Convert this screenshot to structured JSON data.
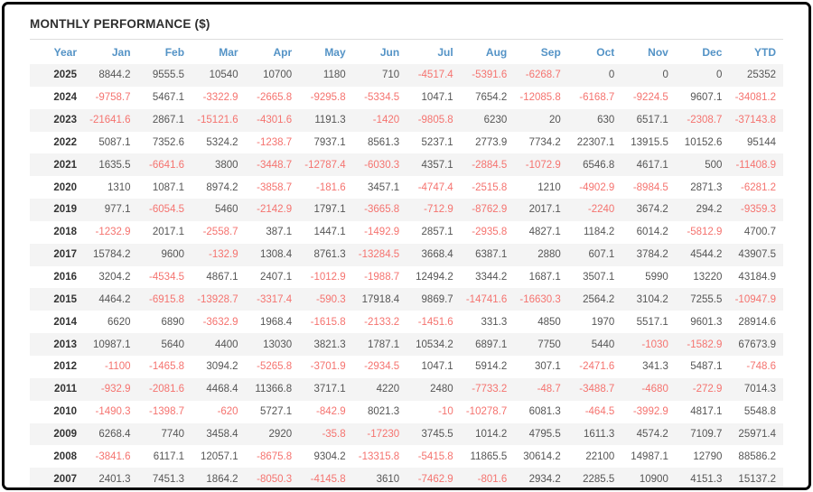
{
  "page": {
    "title": "MONTHLY PERFORMANCE ($)"
  },
  "colors": {
    "title": "#2e2e2e",
    "header_text": "#5493c6",
    "year_text": "#333333",
    "positive": "#555555",
    "negative": "#f5736f",
    "stripe": "#f4f4f4"
  },
  "chart_data": {
    "type": "table",
    "title": "MONTHLY PERFORMANCE ($)",
    "columns": [
      "Year",
      "Jan",
      "Feb",
      "Mar",
      "Apr",
      "May",
      "Jun",
      "Jul",
      "Aug",
      "Sep",
      "Oct",
      "Nov",
      "Dec",
      "YTD"
    ],
    "rows": [
      {
        "year": "2025",
        "values": [
          8844.2,
          9555.5,
          10540,
          10700,
          1180,
          710,
          -4517.4,
          -5391.6,
          -6268.7,
          0,
          0,
          0,
          25352
        ]
      },
      {
        "year": "2024",
        "values": [
          -9758.7,
          5467.1,
          -3322.9,
          -2665.8,
          -9295.8,
          -5334.5,
          1047.1,
          7654.2,
          -12085.8,
          -6168.7,
          -9224.5,
          9607.1,
          -34081.2
        ]
      },
      {
        "year": "2023",
        "values": [
          -21641.6,
          2867.1,
          -15121.6,
          -4301.6,
          1191.3,
          -1420,
          -9805.8,
          6230,
          20,
          630,
          6517.1,
          -2308.7,
          -37143.8
        ]
      },
      {
        "year": "2022",
        "values": [
          5087.1,
          7352.6,
          5324.2,
          -1238.7,
          7937.1,
          8561.3,
          5237.1,
          2773.9,
          7734.2,
          22307.1,
          13915.5,
          10152.6,
          95144
        ]
      },
      {
        "year": "2021",
        "values": [
          1635.5,
          -6641.6,
          3800,
          -3448.7,
          -12787.4,
          -6030.3,
          4357.1,
          -2884.5,
          -1072.9,
          6546.8,
          4617.1,
          500,
          -11408.9
        ]
      },
      {
        "year": "2020",
        "values": [
          1310,
          1087.1,
          8974.2,
          -3858.7,
          -181.6,
          3457.1,
          -4747.4,
          -2515.8,
          1210,
          -4902.9,
          -8984.5,
          2871.3,
          -6281.2
        ]
      },
      {
        "year": "2019",
        "values": [
          977.1,
          -6054.5,
          5460,
          -2142.9,
          1797.1,
          -3665.8,
          -712.9,
          -8762.9,
          2017.1,
          -2240,
          3674.2,
          294.2,
          -9359.3
        ]
      },
      {
        "year": "2018",
        "values": [
          -1232.9,
          2017.1,
          -2558.7,
          387.1,
          1447.1,
          -1492.9,
          2857.1,
          -2935.8,
          4827.1,
          1184.2,
          6014.2,
          -5812.9,
          4700.7
        ]
      },
      {
        "year": "2017",
        "values": [
          15784.2,
          9600,
          -132.9,
          1308.4,
          8761.3,
          -13284.5,
          3668.4,
          6387.1,
          2880,
          607.1,
          3784.2,
          4544.2,
          43907.5
        ]
      },
      {
        "year": "2016",
        "values": [
          3204.2,
          -4534.5,
          4867.1,
          2407.1,
          -1012.9,
          -1988.7,
          12494.2,
          3344.2,
          1687.1,
          3507.1,
          5990,
          13220,
          43184.9
        ]
      },
      {
        "year": "2015",
        "values": [
          4464.2,
          -6915.8,
          -13928.7,
          -3317.4,
          -590.3,
          17918.4,
          9869.7,
          -14741.6,
          -16630.3,
          2564.2,
          3104.2,
          7255.5,
          -10947.9
        ]
      },
      {
        "year": "2014",
        "values": [
          6620,
          6890,
          -3632.9,
          1968.4,
          -1615.8,
          -2133.2,
          -1451.6,
          331.3,
          4850,
          1970,
          5517.1,
          9601.3,
          28914.6
        ]
      },
      {
        "year": "2013",
        "values": [
          10987.1,
          5640,
          4400,
          13030,
          3821.3,
          1787.1,
          10534.2,
          6897.1,
          7750,
          5440,
          -1030,
          -1582.9,
          67673.9
        ]
      },
      {
        "year": "2012",
        "values": [
          -1100,
          -1465.8,
          3094.2,
          -5265.8,
          -3701.9,
          -2934.5,
          1047.1,
          5914.2,
          307.1,
          -2471.6,
          341.3,
          5487.1,
          -748.6
        ]
      },
      {
        "year": "2011",
        "values": [
          -932.9,
          -2081.6,
          4468.4,
          11366.8,
          3717.1,
          4220,
          2480,
          -7733.2,
          -48.7,
          -3488.7,
          -4680,
          -272.9,
          7014.3
        ]
      },
      {
        "year": "2010",
        "values": [
          -1490.3,
          -1398.7,
          -620,
          5727.1,
          -842.9,
          8021.3,
          -10,
          -10278.7,
          6081.3,
          -464.5,
          -3992.9,
          4817.1,
          5548.8
        ]
      },
      {
        "year": "2009",
        "values": [
          6268.4,
          7740,
          3458.4,
          2920,
          -35.8,
          -17230,
          3745.5,
          1014.2,
          4795.5,
          1611.3,
          4574.2,
          7109.7,
          25971.4
        ]
      },
      {
        "year": "2008",
        "values": [
          -3841.6,
          6117.1,
          12057.1,
          -8675.8,
          9304.2,
          -13315.8,
          -5415.8,
          11865.5,
          30614.2,
          22100,
          14987.1,
          12790,
          88586.2
        ]
      },
      {
        "year": "2007",
        "values": [
          2401.3,
          7451.3,
          1864.2,
          -8050.3,
          -4145.8,
          3610,
          -7462.9,
          -801.6,
          2934.2,
          2285.5,
          10900,
          4151.3,
          15137.2
        ]
      }
    ]
  }
}
